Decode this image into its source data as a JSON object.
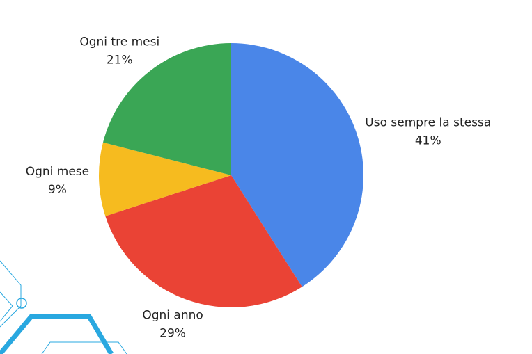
{
  "chart_data": {
    "type": "pie",
    "categories": [
      "Uso sempre la stessa",
      "Ogni anno",
      "Ogni mese",
      "Ogni tre mesi"
    ],
    "values": [
      41,
      29,
      9,
      21
    ],
    "value_labels": [
      "41%",
      "29%",
      "9%",
      "21%"
    ],
    "colors": [
      "#4a86e8",
      "#ea4335",
      "#f6bb1f",
      "#3aa655"
    ]
  }
}
